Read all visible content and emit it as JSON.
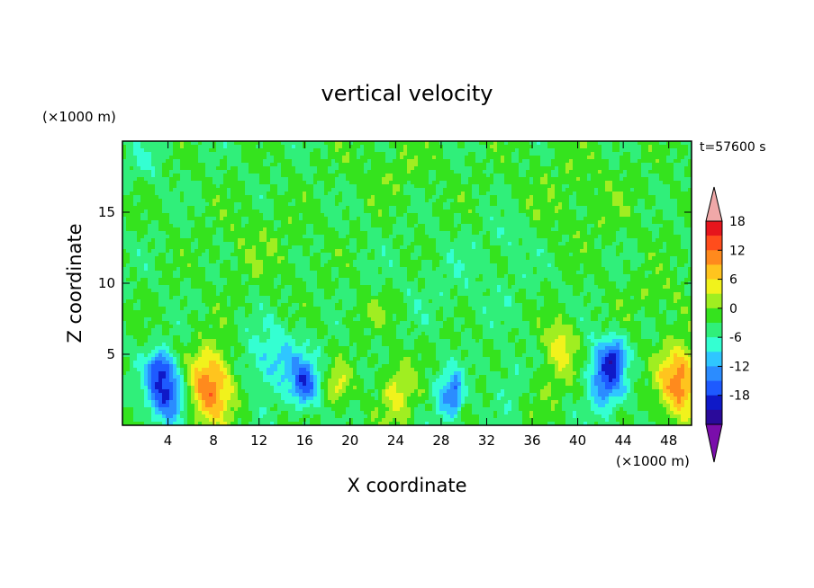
{
  "chart_data": {
    "type": "heatmap",
    "title": "vertical velocity",
    "xlabel": "X coordinate",
    "ylabel": "Z coordinate",
    "x_unit": "(×1000 m)",
    "y_unit": "(×1000 m)",
    "time_label": "t=57600 s",
    "xlim": [
      0,
      50
    ],
    "ylim": [
      0,
      20
    ],
    "x_ticks": [
      4,
      8,
      12,
      16,
      20,
      24,
      28,
      32,
      36,
      40,
      44,
      48
    ],
    "y_ticks": [
      5,
      10,
      15
    ],
    "colorbar": {
      "levels": [
        -21,
        -18,
        -15,
        -12,
        -9,
        -6,
        -3,
        0,
        3,
        6,
        9,
        12,
        15,
        18,
        21
      ],
      "tick_labels": [
        18,
        12,
        6,
        0,
        -6,
        -12,
        -18
      ],
      "colors": [
        "#7a0dab",
        "#2a0a9a",
        "#0f19c8",
        "#1e5aff",
        "#2b8cff",
        "#2fc6ff",
        "#34ffd2",
        "#30ef7a",
        "#35e31e",
        "#a0ee21",
        "#f1f21c",
        "#ffc41e",
        "#ff8a1d",
        "#ff4d1c",
        "#e6151c",
        "#f0a8a8"
      ],
      "extend": "both"
    },
    "features": [
      {
        "x": 3.8,
        "z": 2.4,
        "sx": 1.2,
        "sz": 1.5,
        "amp": -16
      },
      {
        "x": 3.2,
        "z": 4.2,
        "sx": 0.7,
        "sz": 0.7,
        "amp": -8
      },
      {
        "x": 7.7,
        "z": 2.8,
        "sx": 1.4,
        "sz": 1.8,
        "amp": 15
      },
      {
        "x": 13.5,
        "z": 4.5,
        "sx": 2.0,
        "sz": 1.6,
        "amp": -7
      },
      {
        "x": 16.0,
        "z": 2.8,
        "sx": 0.8,
        "sz": 1.1,
        "amp": -12
      },
      {
        "x": 19.0,
        "z": 2.8,
        "sx": 0.7,
        "sz": 1.0,
        "amp": 6
      },
      {
        "x": 24.2,
        "z": 2.2,
        "sx": 1.1,
        "sz": 1.6,
        "amp": 7
      },
      {
        "x": 28.5,
        "z": 2.0,
        "sx": 0.8,
        "sz": 1.3,
        "amp": -8
      },
      {
        "x": 29.3,
        "z": 2.2,
        "sx": 0.4,
        "sz": 1.0,
        "amp": -8
      },
      {
        "x": 34.0,
        "z": 3.0,
        "sx": 1.2,
        "sz": 1.4,
        "amp": -3
      },
      {
        "x": 38.5,
        "z": 5.5,
        "sx": 1.0,
        "sz": 1.3,
        "amp": 8
      },
      {
        "x": 37.0,
        "z": 2.5,
        "sx": 1.2,
        "sz": 1.2,
        "amp": 3
      },
      {
        "x": 42.5,
        "z": 3.5,
        "sx": 1.1,
        "sz": 1.6,
        "amp": -14
      },
      {
        "x": 43.3,
        "z": 5.0,
        "sx": 0.6,
        "sz": 0.8,
        "amp": -8
      },
      {
        "x": 49.0,
        "z": 3.0,
        "sx": 1.3,
        "sz": 1.8,
        "amp": 14
      },
      {
        "x": 30.0,
        "z": 10.0,
        "sx": 5.0,
        "sz": 2.0,
        "amp": -1.5
      },
      {
        "x": 12.0,
        "z": 12.5,
        "sx": 3.0,
        "sz": 2.0,
        "amp": 2
      },
      {
        "x": 40.0,
        "z": 16.0,
        "sx": 4.0,
        "sz": 2.5,
        "amp": 2
      },
      {
        "x": 24.0,
        "z": 18.0,
        "sx": 3.0,
        "sz": 1.5,
        "amp": 2
      },
      {
        "x": 2.0,
        "z": 18.5,
        "sx": 1.2,
        "sz": 1.0,
        "amp": -2.5
      },
      {
        "x": 34.0,
        "z": 13.5,
        "sx": 1.2,
        "sz": 1.0,
        "amp": -3
      },
      {
        "x": 22.0,
        "z": 8.0,
        "sx": 1.5,
        "sz": 0.8,
        "amp": 3
      },
      {
        "x": 47.0,
        "z": 9.0,
        "sx": 2.0,
        "sz": 1.0,
        "amp": 2.5
      }
    ]
  }
}
